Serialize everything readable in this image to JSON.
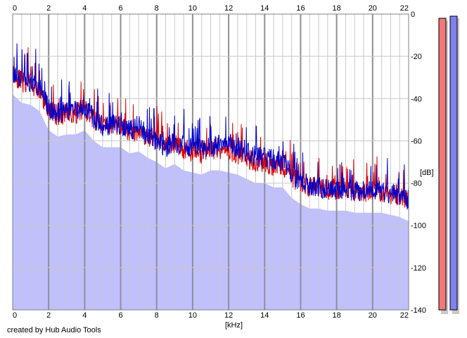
{
  "footer": {
    "credit": "created by Hub Audio Tools"
  },
  "chart_data": {
    "type": "area",
    "xlabel": "[kHz]",
    "ylabel": "[dB]",
    "xlim": [
      0,
      22
    ],
    "ylim": [
      -140,
      0
    ],
    "x_ticks": [
      0,
      2,
      4,
      6,
      8,
      10,
      12,
      14,
      16,
      18,
      20,
      22
    ],
    "y_ticks": [
      0,
      -20,
      -40,
      -60,
      -80,
      -100,
      -120,
      -140
    ],
    "grid": true,
    "colors": {
      "fill": "#c0c0ff",
      "left": "#e00000",
      "right": "#0000cc",
      "grid": "#c8c8c8",
      "major_grid": "#909090",
      "meter_left": "#f07878",
      "meter_right": "#8080f0",
      "meter_shadow": "#c8c8c8"
    },
    "x": [
      0.0,
      0.5,
      1.0,
      1.5,
      2.0,
      2.5,
      3.0,
      3.5,
      4.0,
      4.5,
      5.0,
      5.5,
      6.0,
      6.5,
      7.0,
      7.5,
      8.0,
      8.5,
      9.0,
      9.5,
      10.0,
      10.5,
      11.0,
      11.5,
      12.0,
      12.5,
      13.0,
      13.5,
      14.0,
      14.5,
      15.0,
      15.5,
      16.0,
      16.5,
      17.0,
      17.5,
      18.0,
      18.5,
      19.0,
      19.5,
      20.0,
      20.5,
      21.0,
      21.5,
      22.0
    ],
    "series": [
      {
        "values": [
          -28,
          -32,
          -33,
          -36,
          -45,
          -48,
          -47,
          -47,
          -45,
          -50,
          -52,
          -53,
          -53,
          -56,
          -55,
          -58,
          -59,
          -62,
          -61,
          -64,
          -65,
          -66,
          -64,
          -64,
          -65,
          -66,
          -68,
          -70,
          -70,
          -72,
          -72,
          -77,
          -80,
          -82,
          -82,
          -83,
          -83,
          -83,
          -84,
          -84,
          -84,
          -84,
          -85,
          -86,
          -88
        ]
      },
      {
        "values": [
          -28,
          -30,
          -32,
          -35,
          -44,
          -47,
          -46,
          -46,
          -44,
          -49,
          -53,
          -52,
          -52,
          -55,
          -54,
          -57,
          -60,
          -63,
          -60,
          -62,
          -63,
          -64,
          -63,
          -62,
          -62,
          -63,
          -66,
          -67,
          -68,
          -69,
          -70,
          -76,
          -79,
          -81,
          -82,
          -83,
          -83,
          -82,
          -84,
          -84,
          -83,
          -84,
          -85,
          -86,
          -88
        ]
      }
    ],
    "meters": {
      "left": -2,
      "right": -1
    }
  }
}
